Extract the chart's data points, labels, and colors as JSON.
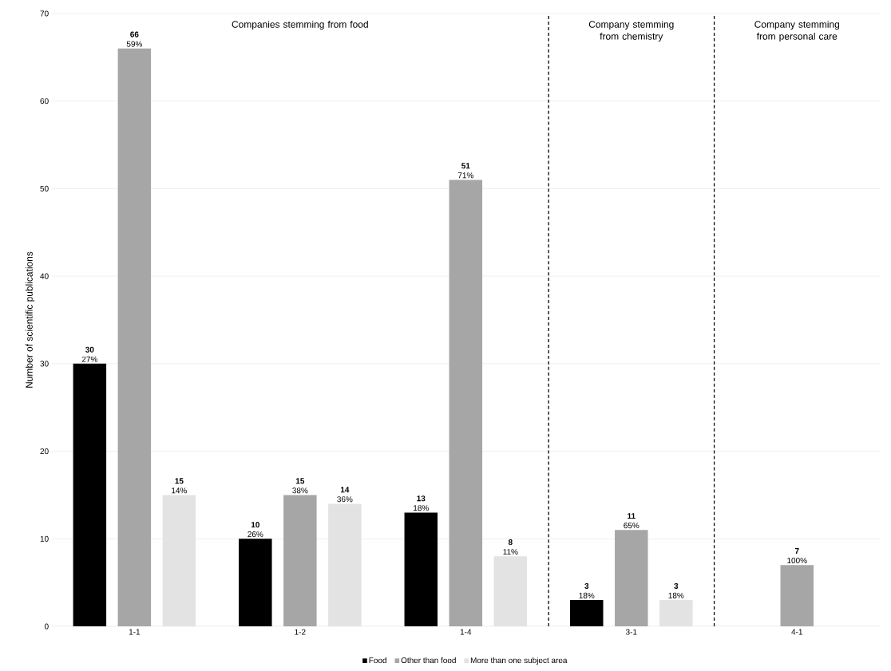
{
  "chart_data": {
    "type": "bar",
    "ylabel": "Number of scientific publications",
    "categories": [
      "1-1",
      "1-2",
      "1-4",
      "3-1",
      "4-1"
    ],
    "series": [
      {
        "name": "Food",
        "color": "#000000",
        "values": [
          30,
          10,
          13,
          3,
          null
        ],
        "value_labels": [
          "**30** 27%",
          "**10** 26%",
          "**13** 18%",
          "**3** 18%",
          null
        ]
      },
      {
        "name": "Other than food",
        "color": "#a6a6a6",
        "values": [
          66,
          15,
          51,
          11,
          7
        ],
        "value_labels": [
          "**66** 59%",
          "**15** 38%",
          "**51** 71%",
          "**11** 65%",
          "**7** 100%"
        ]
      },
      {
        "name": "More than one subject area",
        "color": "#e3e3e3",
        "values": [
          15,
          14,
          8,
          3,
          null
        ],
        "value_labels": [
          "**15** 14%",
          "**14** 36%",
          "**8** 11%",
          "**3** 18%",
          null
        ]
      }
    ],
    "ylim": [
      0,
      70
    ],
    "yticks": [
      0,
      10,
      20,
      30,
      40,
      50,
      60,
      70
    ],
    "grid": "y",
    "legend": "bottom",
    "annotations": [
      "Companies stemming from food",
      "Company stemming from chemistry",
      "Company stemming from personal care"
    ]
  }
}
